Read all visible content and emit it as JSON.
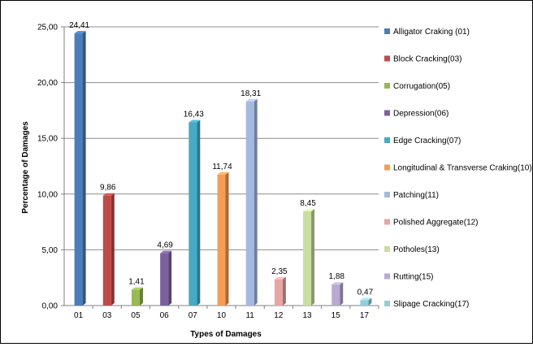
{
  "chart_data": {
    "type": "bar",
    "title": "",
    "xlabel": "Types of Damages",
    "ylabel": "Percentage of Damages",
    "ylim": [
      0,
      25
    ],
    "ytick_values": [
      0,
      5,
      10,
      15,
      20,
      25
    ],
    "ytick_labels": [
      "0,00",
      "5,00",
      "10,00",
      "15,00",
      "20,00",
      "25,00"
    ],
    "grid": "horizontal",
    "legend_position": "right",
    "categories": [
      "01",
      "03",
      "05",
      "06",
      "07",
      "10",
      "11",
      "12",
      "13",
      "15",
      "17"
    ],
    "values": [
      24.41,
      9.86,
      1.41,
      4.69,
      16.43,
      11.74,
      18.31,
      2.35,
      8.45,
      1.88,
      0.47
    ],
    "value_labels": [
      "24,41",
      "9,86",
      "1,41",
      "4,69",
      "16,43",
      "11,74",
      "18,31",
      "2,35",
      "8,45",
      "1,88",
      "0,47"
    ],
    "legend": [
      "Alligator Craking (01)",
      "Block Cracking(03)",
      "Corrugation(05)",
      "Depression(06)",
      "Edge Cracking(07)",
      "Longitudinal & Transverse Craking(10)",
      "Patching(11)",
      "Polished Aggregate(12)",
      "Potholes(13)",
      "Rutting(15)",
      "Slipage Cracking(17)"
    ],
    "colors": [
      "#4a7ebb",
      "#be4b48",
      "#98b954",
      "#7d60a0",
      "#46aac5",
      "#f59d56",
      "#a5b9e0",
      "#e6a6a4",
      "#c9dea0",
      "#b9a9d1",
      "#92cddc"
    ]
  }
}
